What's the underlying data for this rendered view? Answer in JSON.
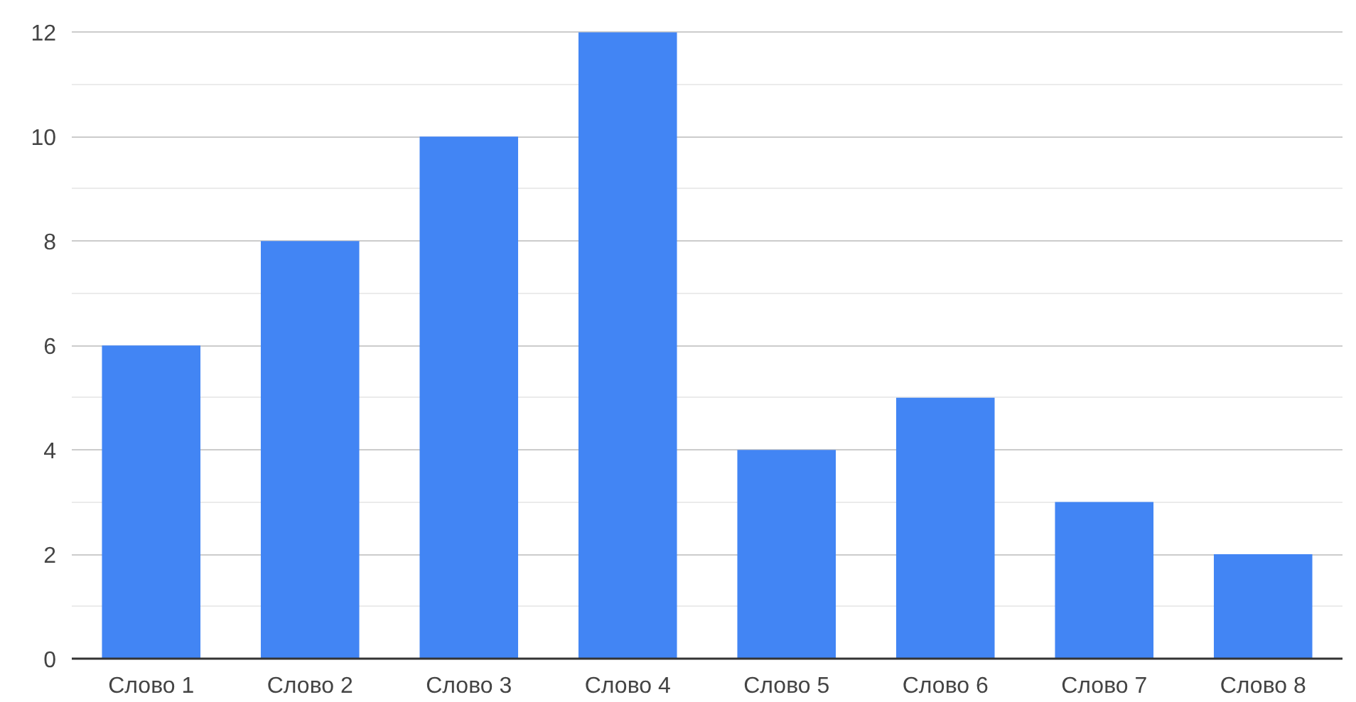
{
  "chart_data": {
    "type": "bar",
    "categories": [
      "Слово 1",
      "Слово 2",
      "Слово 3",
      "Слово 4",
      "Слово 5",
      "Слово 6",
      "Слово 7",
      "Слово 8"
    ],
    "values": [
      6,
      8,
      10,
      12,
      4,
      5,
      3,
      2
    ],
    "color": "#4285f4",
    "ylim": [
      0,
      12
    ],
    "yticks": [
      0,
      2,
      4,
      6,
      8,
      10,
      12
    ],
    "grid": "y"
  }
}
